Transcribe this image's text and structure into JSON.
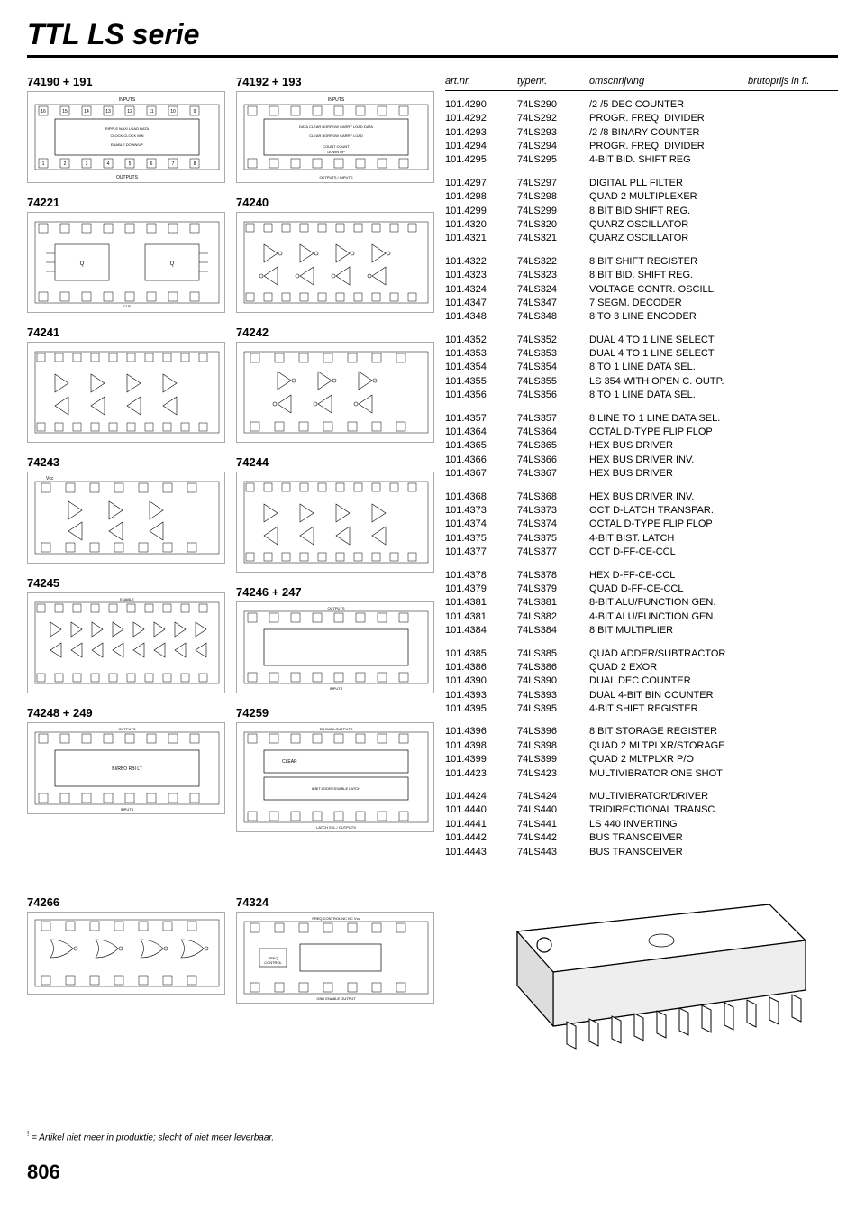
{
  "title": "TTL LS serie",
  "table_headers": {
    "artnr": "art.nr.",
    "typenr": "typenr.",
    "omschrijving": "omschrijving",
    "brutoprijs": "brutoprijs in fl."
  },
  "diagram_labels": [
    "74190 + 191",
    "74192 + 193",
    "74221",
    "74240",
    "74241",
    "74242",
    "74243",
    "74244",
    "74245",
    "74246 + 247",
    "74248 + 249",
    "74259",
    "74266",
    "74324"
  ],
  "groups": [
    [
      {
        "art": "101.4290",
        "type": "74LS290",
        "desc": "/2 /5 DEC COUNTER"
      },
      {
        "art": "101.4292",
        "type": "74LS292",
        "desc": "PROGR. FREQ. DIVIDER"
      },
      {
        "art": "101.4293",
        "type": "74LS293",
        "desc": "/2 /8 BINARY COUNTER"
      },
      {
        "art": "101.4294",
        "type": "74LS294",
        "desc": "PROGR. FREQ. DIVIDER"
      },
      {
        "art": "101.4295",
        "type": "74LS295",
        "desc": "4-BIT BID. SHIFT REG"
      }
    ],
    [
      {
        "art": "101.4297",
        "type": "74LS297",
        "desc": "DIGITAL PLL FILTER"
      },
      {
        "art": "101.4298",
        "type": "74LS298",
        "desc": "QUAD 2 MULTIPLEXER"
      },
      {
        "art": "101.4299",
        "type": "74LS299",
        "desc": "8 BIT BID SHIFT REG."
      },
      {
        "art": "101.4320",
        "type": "74LS320",
        "desc": "QUARZ OSCILLATOR"
      },
      {
        "art": "101.4321",
        "type": "74LS321",
        "desc": "QUARZ OSCILLATOR"
      }
    ],
    [
      {
        "art": "101.4322",
        "type": "74LS322",
        "desc": "8 BIT SHIFT REGISTER"
      },
      {
        "art": "101.4323",
        "type": "74LS323",
        "desc": "8 BIT BID. SHIFT REG."
      },
      {
        "art": "101.4324",
        "type": "74LS324",
        "desc": "VOLTAGE CONTR. OSCILL."
      },
      {
        "art": "101.4347",
        "type": "74LS347",
        "desc": "7 SEGM. DECODER"
      },
      {
        "art": "101.4348",
        "type": "74LS348",
        "desc": "8 TO 3 LINE ENCODER"
      }
    ],
    [
      {
        "art": "101.4352",
        "type": "74LS352",
        "desc": "DUAL 4 TO 1 LINE SELECT"
      },
      {
        "art": "101.4353",
        "type": "74LS353",
        "desc": "DUAL 4 TO 1 LINE SELECT"
      },
      {
        "art": "101.4354",
        "type": "74LS354",
        "desc": "8 TO 1 LINE DATA SEL."
      },
      {
        "art": "101.4355",
        "type": "74LS355",
        "desc": "LS 354 WITH OPEN C. OUTP."
      },
      {
        "art": "101.4356",
        "type": "74LS356",
        "desc": "8 TO 1 LINE DATA SEL."
      }
    ],
    [
      {
        "art": "101.4357",
        "type": "74LS357",
        "desc": "8 LINE TO 1 LINE DATA SEL."
      },
      {
        "art": "101.4364",
        "type": "74LS364",
        "desc": "OCTAL D-TYPE FLIP FLOP"
      },
      {
        "art": "101.4365",
        "type": "74LS365",
        "desc": "HEX BUS DRIVER"
      },
      {
        "art": "101.4366",
        "type": "74LS366",
        "desc": "HEX BUS DRIVER INV."
      },
      {
        "art": "101.4367",
        "type": "74LS367",
        "desc": "HEX BUS DRIVER"
      }
    ],
    [
      {
        "art": "101.4368",
        "type": "74LS368",
        "desc": "HEX BUS DRIVER INV."
      },
      {
        "art": "101.4373",
        "type": "74LS373",
        "desc": "OCT D-LATCH TRANSPAR."
      },
      {
        "art": "101.4374",
        "type": "74LS374",
        "desc": "OCTAL D-TYPE FLIP FLOP"
      },
      {
        "art": "101.4375",
        "type": "74LS375",
        "desc": "4-BIT BIST. LATCH"
      },
      {
        "art": "101.4377",
        "type": "74LS377",
        "desc": "OCT D-FF-CE-CCL"
      }
    ],
    [
      {
        "art": "101.4378",
        "type": "74LS378",
        "desc": "HEX D-FF-CE-CCL"
      },
      {
        "art": "101.4379",
        "type": "74LS379",
        "desc": "QUAD D-FF-CE-CCL"
      },
      {
        "art": "101.4381",
        "type": "74LS381",
        "desc": "8-BIT ALU/FUNCTION GEN."
      },
      {
        "art": "101.4381",
        "type": "74LS382",
        "desc": "4-BIT ALU/FUNCTION GEN."
      },
      {
        "art": "101.4384",
        "type": "74LS384",
        "desc": "8 BIT MULTIPLIER"
      }
    ],
    [
      {
        "art": "101.4385",
        "type": "74LS385",
        "desc": "QUAD ADDER/SUBTRACTOR"
      },
      {
        "art": "101.4386",
        "type": "74LS386",
        "desc": "QUAD 2 EXOR"
      },
      {
        "art": "101.4390",
        "type": "74LS390",
        "desc": "DUAL DEC COUNTER"
      },
      {
        "art": "101.4393",
        "type": "74LS393",
        "desc": "DUAL 4-BIT BIN COUNTER"
      },
      {
        "art": "101.4395",
        "type": "74LS395",
        "desc": "4-BIT SHIFT REGISTER"
      }
    ],
    [
      {
        "art": "101.4396",
        "type": "74LS396",
        "desc": "8 BIT STORAGE REGISTER"
      },
      {
        "art": "101.4398",
        "type": "74LS398",
        "desc": "QUAD 2 MLTPLXR/STORAGE"
      },
      {
        "art": "101.4399",
        "type": "74LS399",
        "desc": "QUAD 2 MLTPLXR P/O"
      },
      {
        "art": "101.4423",
        "type": "74LS423",
        "desc": "MULTIVIBRATOR ONE SHOT"
      }
    ],
    [
      {
        "art": "101.4424",
        "type": "74LS424",
        "desc": "MULTIVIBRATOR/DRIVER"
      },
      {
        "art": "101.4440",
        "type": "74LS440",
        "desc": "TRIDIRECTIONAL TRANSC."
      },
      {
        "art": "101.4441",
        "type": "74LS441",
        "desc": "LS 440 INVERTING"
      },
      {
        "art": "101.4442",
        "type": "74LS442",
        "desc": "BUS TRANSCEIVER"
      },
      {
        "art": "101.4443",
        "type": "74LS443",
        "desc": "BUS TRANSCEIVER"
      }
    ]
  ],
  "footnote": "= Artikel niet meer in produktie; slecht of niet meer leverbaar.",
  "footnote_sup": "!",
  "page_number": "806",
  "colors": {
    "text": "#000000",
    "bg": "#ffffff",
    "border": "#aaaaaa",
    "underline": "#000000"
  }
}
